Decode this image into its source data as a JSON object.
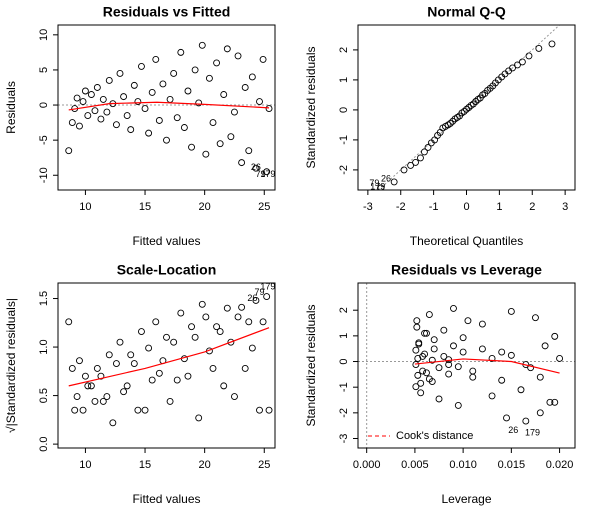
{
  "chart_data": [
    {
      "type": "scatter",
      "title": "Residuals vs Fitted",
      "xlabel": "Fitted values",
      "ylabel": "Residuals",
      "xlim": [
        7.7,
        25.9
      ],
      "ylim": [
        -12.1,
        11.4
      ],
      "xticks": [
        10,
        15,
        20,
        25
      ],
      "yticks": [
        -10,
        -5,
        0,
        5,
        10
      ],
      "color": "#000000",
      "hline": 0,
      "x": [
        8.6,
        8.9,
        9.1,
        9.3,
        9.5,
        9.8,
        10.0,
        10.2,
        10.5,
        10.8,
        11.0,
        11.3,
        11.5,
        11.8,
        12.0,
        12.3,
        12.6,
        12.9,
        13.2,
        13.5,
        13.8,
        14.1,
        14.4,
        14.7,
        15.0,
        15.3,
        15.6,
        15.9,
        16.2,
        16.5,
        16.8,
        17.1,
        17.4,
        17.7,
        18.0,
        18.3,
        18.6,
        18.9,
        19.2,
        19.5,
        19.8,
        20.1,
        20.4,
        20.7,
        21.0,
        21.3,
        21.6,
        21.9,
        22.2,
        22.5,
        22.8,
        23.1,
        23.4,
        23.7,
        24.0,
        24.3,
        24.6,
        24.9,
        25.2,
        25.4
      ],
      "values": [
        -6.5,
        -2.5,
        -0.5,
        1.0,
        -3.0,
        0.5,
        2.0,
        -1.5,
        1.5,
        -0.8,
        2.5,
        -2.0,
        0.8,
        -1.0,
        3.5,
        0.2,
        -2.8,
        4.5,
        1.2,
        -1.5,
        -3.5,
        2.8,
        0.5,
        5.5,
        -0.5,
        -4.0,
        1.8,
        6.5,
        -2.2,
        3.0,
        -5.0,
        0.8,
        4.5,
        -1.8,
        7.5,
        -3.2,
        2.0,
        -6.0,
        5.0,
        0.3,
        8.5,
        -7.0,
        3.8,
        -2.5,
        6.0,
        -5.5,
        1.5,
        8.0,
        -4.5,
        -1.0,
        7.0,
        -8.2,
        2.5,
        -6.5,
        4.0,
        -9.0,
        0.5,
        6.5,
        -9.5,
        -0.5
      ],
      "line": {
        "color": "#ff0000",
        "x": [
          8.6,
          12,
          16,
          20,
          25.4
        ],
        "values": [
          -0.7,
          0.2,
          0.4,
          0.1,
          -0.4
        ]
      },
      "annotations": [
        {
          "text": "26",
          "x": 24.3,
          "y": -8.9
        },
        {
          "text": "79",
          "x": 24.7,
          "y": -9.9
        },
        {
          "text": "179",
          "x": 25.3,
          "y": -9.9
        }
      ]
    },
    {
      "type": "scatter",
      "title": "Normal Q-Q",
      "xlabel": "Theoretical Quantiles",
      "ylabel": "Standardized residuals",
      "xlim": [
        -3.3,
        3.3
      ],
      "ylim": [
        -2.67,
        2.83
      ],
      "xticks": [
        -3,
        -2,
        -1,
        0,
        1,
        2,
        3
      ],
      "yticks": [
        -2,
        -1,
        0,
        1,
        2
      ],
      "color": "#000000",
      "refline": {
        "slope": 1,
        "intercept": 0
      },
      "x": [
        -2.6,
        -2.2,
        -1.9,
        -1.7,
        -1.55,
        -1.4,
        -1.28,
        -1.17,
        -1.07,
        -0.97,
        -0.88,
        -0.8,
        -0.72,
        -0.64,
        -0.56,
        -0.49,
        -0.42,
        -0.35,
        -0.28,
        -0.21,
        -0.14,
        -0.07,
        0.0,
        0.07,
        0.14,
        0.21,
        0.28,
        0.35,
        0.42,
        0.49,
        0.56,
        0.64,
        0.72,
        0.8,
        0.88,
        0.97,
        1.07,
        1.17,
        1.28,
        1.4,
        1.55,
        1.7,
        1.9,
        2.2,
        2.6
      ],
      "values": [
        -2.6,
        -2.4,
        -2.0,
        -1.85,
        -1.75,
        -1.6,
        -1.4,
        -1.25,
        -1.1,
        -1.0,
        -0.85,
        -0.75,
        -0.6,
        -0.55,
        -0.5,
        -0.45,
        -0.38,
        -0.3,
        -0.25,
        -0.2,
        -0.1,
        -0.05,
        0.02,
        0.08,
        0.15,
        0.2,
        0.28,
        0.35,
        0.4,
        0.5,
        0.55,
        0.65,
        0.72,
        0.8,
        0.9,
        1.0,
        1.1,
        1.2,
        1.3,
        1.4,
        1.5,
        1.6,
        1.8,
        2.05,
        2.2
      ],
      "annotations": [
        {
          "text": "26",
          "x": -2.45,
          "y": -2.3
        },
        {
          "text": "79",
          "x": -2.8,
          "y": -2.45
        },
        {
          "text": "179",
          "x": -2.7,
          "y": -2.58
        }
      ]
    },
    {
      "type": "scatter",
      "title": "Scale-Location",
      "xlabel": "Fitted values",
      "ylabel": "√|Standardized residuals|",
      "xlim": [
        7.7,
        25.9
      ],
      "ylim": [
        -0.04,
        1.66
      ],
      "xticks": [
        10,
        15,
        20,
        25
      ],
      "yticks": [
        {
          "value": 0,
          "label": "0.0"
        },
        0.5,
        {
          "value": 1,
          "label": "1.0"
        },
        1.5
      ],
      "color": "#000000",
      "x": [
        8.6,
        8.9,
        9.1,
        9.3,
        9.5,
        9.8,
        10.0,
        10.2,
        10.5,
        10.8,
        11.0,
        11.3,
        11.5,
        11.8,
        12.0,
        12.3,
        12.6,
        12.9,
        13.2,
        13.5,
        13.8,
        14.1,
        14.4,
        14.7,
        15.0,
        15.3,
        15.6,
        15.9,
        16.2,
        16.5,
        16.8,
        17.1,
        17.4,
        17.7,
        18.0,
        18.3,
        18.6,
        18.9,
        19.2,
        19.5,
        19.8,
        20.1,
        20.4,
        20.7,
        21.0,
        21.3,
        21.6,
        21.9,
        22.2,
        22.5,
        22.8,
        23.1,
        23.4,
        23.7,
        24.0,
        24.3,
        24.6,
        24.9,
        25.2,
        25.4
      ],
      "values": [
        1.26,
        0.78,
        0.35,
        0.49,
        0.86,
        0.35,
        0.7,
        0.6,
        0.6,
        0.44,
        0.78,
        0.7,
        0.44,
        0.49,
        0.92,
        0.22,
        0.83,
        1.05,
        0.54,
        0.6,
        0.92,
        0.83,
        0.35,
        1.16,
        0.35,
        0.99,
        0.66,
        1.26,
        0.73,
        0.86,
        1.1,
        0.44,
        1.05,
        0.66,
        1.35,
        0.88,
        0.7,
        1.21,
        1.1,
        0.27,
        1.44,
        1.31,
        0.96,
        0.78,
        1.21,
        1.16,
        0.6,
        1.4,
        1.05,
        0.49,
        1.31,
        1.41,
        0.78,
        1.26,
        0.99,
        1.48,
        0.35,
        1.26,
        1.52,
        0.35
      ],
      "line": {
        "color": "#ff0000",
        "x": [
          8.6,
          15,
          20,
          25.4
        ],
        "values": [
          0.6,
          0.78,
          0.95,
          1.2
        ]
      },
      "annotations": [
        {
          "text": "26",
          "x": 24.0,
          "y": 1.5
        },
        {
          "text": "79",
          "x": 24.6,
          "y": 1.56
        },
        {
          "text": "179",
          "x": 25.3,
          "y": 1.62
        }
      ]
    },
    {
      "type": "scatter",
      "title": "Residuals vs Leverage",
      "xlabel": "Leverage",
      "ylabel": "Standardized residuals",
      "xlim": [
        -0.0009,
        0.0216
      ],
      "ylim": [
        -3.37,
        3.06
      ],
      "xticks": [
        {
          "value": 0,
          "label": "0.000"
        },
        0.005,
        {
          "value": 0.01,
          "label": "0.010"
        },
        0.015,
        {
          "value": 0.02,
          "label": "0.020"
        }
      ],
      "yticks": [
        -3,
        -2,
        -1,
        0,
        1,
        2
      ],
      "color": "#000000",
      "hline": 0,
      "vline": 0,
      "x": [
        0.0195,
        0.018,
        0.0165,
        0.015,
        0.014,
        0.013,
        0.012,
        0.011,
        0.01,
        0.0095,
        0.009,
        0.0085,
        0.008,
        0.0075,
        0.007,
        0.0068,
        0.0065,
        0.0062,
        0.006,
        0.0058,
        0.0056,
        0.0054,
        0.0053,
        0.0052,
        0.0051,
        0.0051,
        0.0051,
        0.0052,
        0.0053,
        0.0054,
        0.0056,
        0.0058,
        0.006,
        0.0062,
        0.0065,
        0.0068,
        0.007,
        0.0075,
        0.008,
        0.0085,
        0.009,
        0.0095,
        0.01,
        0.011,
        0.012,
        0.013,
        0.014,
        0.015,
        0.016,
        0.017,
        0.0175,
        0.018,
        0.0185,
        0.019,
        0.0195,
        0.0145,
        0.02,
        0.0105,
        0.0165,
        0.0085
      ],
      "values": [
        -1.59,
        -0.61,
        -0.12,
        0.24,
        -0.73,
        0.12,
        0.49,
        -0.37,
        0.37,
        -0.2,
        0.61,
        -0.49,
        0.2,
        -0.24,
        0.85,
        0.05,
        -0.68,
        1.1,
        0.29,
        -0.37,
        -0.85,
        0.68,
        0.12,
        1.34,
        -0.12,
        -0.98,
        0.44,
        1.59,
        -0.54,
        0.73,
        -1.22,
        0.2,
        1.1,
        -0.44,
        1.83,
        -0.78,
        0.49,
        -1.46,
        1.22,
        0.07,
        2.07,
        -1.71,
        0.93,
        -0.61,
        1.46,
        -1.34,
        0.37,
        1.95,
        -1.1,
        -0.24,
        1.71,
        -2.0,
        0.61,
        -1.59,
        0.98,
        -2.2,
        0.12,
        1.59,
        -2.32,
        -0.12
      ],
      "line": {
        "color": "#ff0000",
        "x": [
          0.005,
          0.01,
          0.015,
          0.02
        ],
        "values": [
          -0.1,
          0.1,
          0.0,
          -0.45
        ]
      },
      "legend": {
        "label": "Cook's distance",
        "color": "#ff0000",
        "corner": "bottomleft"
      },
      "annotations": [
        {
          "text": "26",
          "x": 0.0152,
          "y": -2.7
        },
        {
          "text": "179",
          "x": 0.0172,
          "y": -2.8
        }
      ]
    }
  ]
}
